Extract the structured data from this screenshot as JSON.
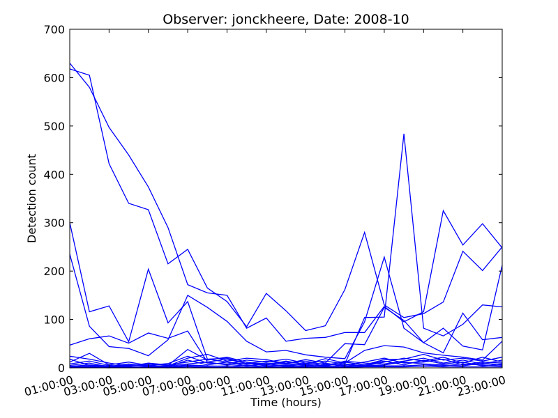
{
  "chart_data": {
    "type": "line",
    "title": "Observer: jonckheere, Date: 2008-10",
    "xlabel": "Time (hours)",
    "ylabel": "Detection count",
    "xlim": [
      1,
      23
    ],
    "ylim": [
      0,
      700
    ],
    "x_ticks": [
      {
        "value": 1,
        "label": "01:00:00"
      },
      {
        "value": 3,
        "label": "03:00:00"
      },
      {
        "value": 5,
        "label": "05:00:00"
      },
      {
        "value": 7,
        "label": "07:00:00"
      },
      {
        "value": 9,
        "label": "09:00:00"
      },
      {
        "value": 11,
        "label": "11:00:00"
      },
      {
        "value": 13,
        "label": "13:00:00"
      },
      {
        "value": 15,
        "label": "15:00:00"
      },
      {
        "value": 17,
        "label": "17:00:00"
      },
      {
        "value": 19,
        "label": "19:00:00"
      },
      {
        "value": 21,
        "label": "21:00:00"
      },
      {
        "value": 23,
        "label": "23:00:00"
      }
    ],
    "y_ticks": [
      {
        "value": 0,
        "label": "0"
      },
      {
        "value": 100,
        "label": "100"
      },
      {
        "value": 200,
        "label": "200"
      },
      {
        "value": 300,
        "label": "300"
      },
      {
        "value": 400,
        "label": "400"
      },
      {
        "value": 500,
        "label": "500"
      },
      {
        "value": 600,
        "label": "600"
      },
      {
        "value": 700,
        "label": "700"
      }
    ],
    "grid": false,
    "legend": "none",
    "line_color": "#0000ff",
    "x": [
      1,
      2,
      3,
      4,
      5,
      6,
      7,
      8,
      9,
      10,
      11,
      12,
      13,
      14,
      15,
      16,
      17,
      18,
      19,
      20,
      21,
      22,
      23
    ],
    "series": [
      {
        "values": [
          630,
          580,
          497,
          440,
          374,
          290,
          172,
          155,
          150,
          82,
          103,
          55,
          61,
          63,
          73,
          73,
          127,
          95,
          116,
          325,
          254,
          298,
          248
        ]
      },
      {
        "values": [
          618,
          605,
          422,
          340,
          327,
          215,
          245,
          165,
          137,
          85,
          154,
          118,
          77,
          87,
          162,
          280,
          130,
          104,
          112,
          136,
          241,
          201,
          250
        ]
      },
      {
        "values": [
          300,
          116,
          128,
          54,
          204,
          93,
          137,
          18,
          12,
          8,
          10,
          8,
          6,
          5,
          8,
          104,
          105,
          484,
          82,
          66,
          90,
          130,
          126
        ]
      },
      {
        "values": [
          235,
          86,
          44,
          40,
          25,
          58,
          150,
          125,
          96,
          55,
          33,
          36,
          27,
          22,
          19,
          95,
          229,
          82,
          52,
          82,
          45,
          37,
          212
        ]
      },
      {
        "values": [
          47,
          60,
          66,
          51,
          72,
          61,
          76,
          12,
          18,
          9,
          14,
          9,
          17,
          10,
          50,
          48,
          125,
          98,
          52,
          31,
          113,
          58,
          63
        ]
      },
      {
        "values": [
          24,
          18,
          10,
          4,
          8,
          5,
          38,
          16,
          22,
          12,
          6,
          14,
          7,
          19,
          10,
          36,
          46,
          43,
          31,
          26,
          22,
          16,
          55
        ]
      },
      {
        "values": [
          18,
          5,
          3,
          8,
          3,
          4,
          20,
          28,
          14,
          20,
          17,
          9,
          14,
          6,
          12,
          6,
          17,
          18,
          28,
          16,
          20,
          14,
          22
        ]
      },
      {
        "values": [
          12,
          30,
          6,
          12,
          5,
          9,
          24,
          10,
          8,
          16,
          12,
          18,
          10,
          14,
          8,
          4,
          12,
          20,
          14,
          22,
          10,
          22,
          12
        ]
      },
      {
        "values": [
          8,
          14,
          5,
          3,
          10,
          6,
          12,
          18,
          20,
          9,
          6,
          12,
          8,
          3,
          14,
          10,
          8,
          14,
          20,
          10,
          16,
          8,
          16
        ]
      },
      {
        "values": [
          5,
          10,
          2,
          6,
          4,
          2,
          16,
          6,
          12,
          4,
          8,
          4,
          10,
          8,
          5,
          12,
          20,
          10,
          12,
          18,
          6,
          12,
          10
        ]
      },
      {
        "values": [
          3,
          6,
          4,
          2,
          2,
          4,
          8,
          12,
          6,
          10,
          4,
          6,
          3,
          10,
          3,
          6,
          14,
          6,
          16,
          8,
          12,
          4,
          8
        ]
      },
      {
        "values": [
          2,
          4,
          1,
          4,
          6,
          2,
          6,
          4,
          3,
          6,
          2,
          3,
          5,
          2,
          6,
          4,
          6,
          12,
          8,
          6,
          4,
          10,
          6
        ]
      },
      {
        "values": [
          1,
          2,
          2,
          1,
          3,
          1,
          4,
          3,
          4,
          2,
          3,
          2,
          2,
          4,
          2,
          3,
          4,
          4,
          6,
          4,
          8,
          6,
          4
        ]
      },
      {
        "values": [
          0,
          1,
          0,
          2,
          1,
          0,
          2,
          1,
          1,
          1,
          1,
          1,
          1,
          1,
          1,
          2,
          2,
          2,
          3,
          2,
          2,
          2,
          2
        ]
      }
    ]
  }
}
